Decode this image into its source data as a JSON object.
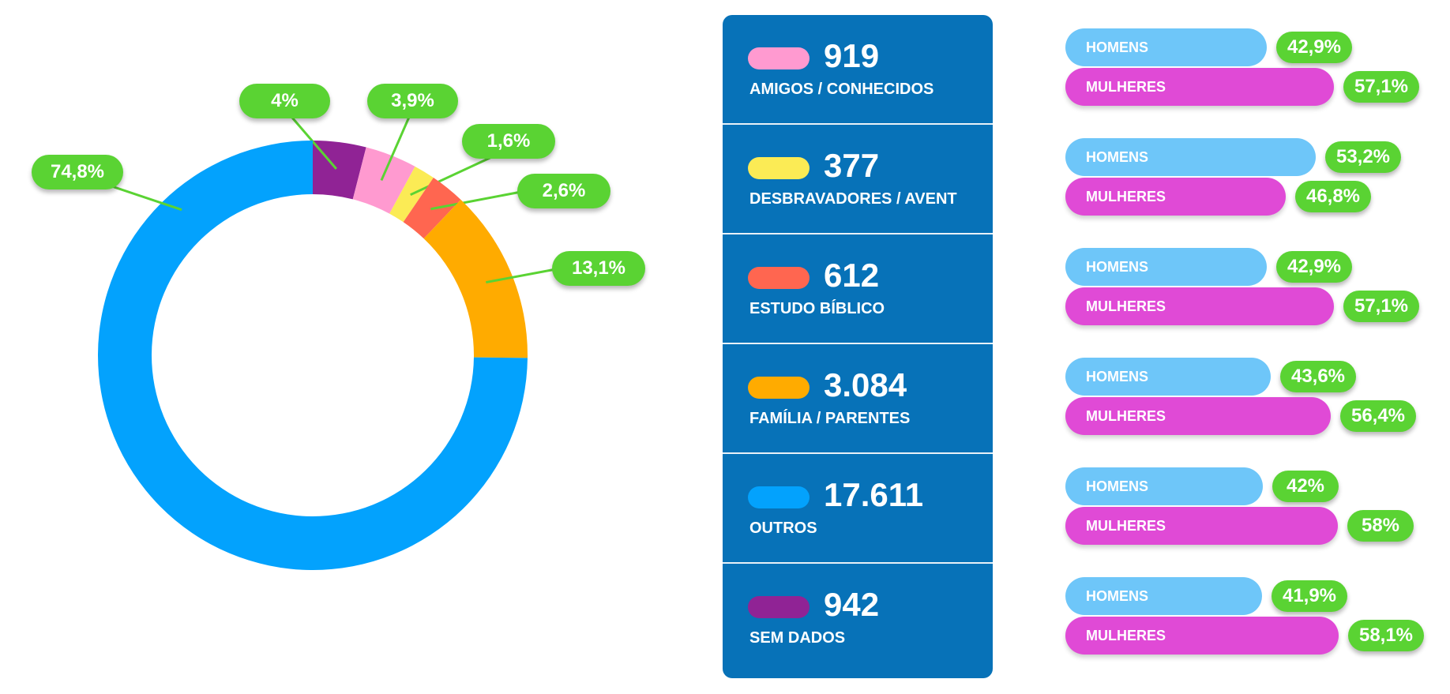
{
  "colors": {
    "label_bg": "#5ad333",
    "panel_bg": "#0772b8",
    "homens": "#6ec6f9",
    "mulheres": "#e04ad6"
  },
  "chart_data": {
    "type": "pie",
    "donut": true,
    "slices": [
      {
        "label": "AMIGOS / CONHECIDOS",
        "count": "919",
        "value": 3.9,
        "value_label": "3,9%",
        "color": "#ff9ad0"
      },
      {
        "label": "DESBRAVADORES / AVENT",
        "count": "377",
        "value": 1.6,
        "value_label": "1,6%",
        "color": "#fbeb55"
      },
      {
        "label": "ESTUDO BÍBLICO",
        "count": "612",
        "value": 2.6,
        "value_label": "2,6%",
        "color": "#ff6650"
      },
      {
        "label": "FAMÍLIA / PARENTES",
        "count": "3.084",
        "value": 13.1,
        "value_label": "13,1%",
        "color": "#ffab00"
      },
      {
        "label": "OUTROS",
        "count": "17.611",
        "value": 74.8,
        "value_label": "74,8%",
        "color": "#03a2fd"
      },
      {
        "label": "SEM DADOS",
        "count": "942",
        "value": 4.0,
        "value_label": "4%",
        "color": "#902395"
      }
    ],
    "gender_breakdown": [
      {
        "category": "AMIGOS / CONHECIDOS",
        "homens_label": "HOMENS",
        "mulheres_label": "MULHERES",
        "homens": 42.9,
        "mulheres": 57.1,
        "homens_text": "42,9%",
        "mulheres_text": "57,1%"
      },
      {
        "category": "DESBRAVADORES / AVENT",
        "homens_label": "HOMENS",
        "mulheres_label": "MULHERES",
        "homens": 53.2,
        "mulheres": 46.8,
        "homens_text": "53,2%",
        "mulheres_text": "46,8%"
      },
      {
        "category": "ESTUDO BÍBLICO",
        "homens_label": "HOMENS",
        "mulheres_label": "MULHERES",
        "homens": 42.9,
        "mulheres": 57.1,
        "homens_text": "42,9%",
        "mulheres_text": "57,1%"
      },
      {
        "category": "FAMÍLIA / PARENTES",
        "homens_label": "HOMENS",
        "mulheres_label": "MULHERES",
        "homens": 43.6,
        "mulheres": 56.4,
        "homens_text": "43,6%",
        "mulheres_text": "56,4%"
      },
      {
        "category": "OUTROS",
        "homens_label": "HOMENS",
        "mulheres_label": "MULHERES",
        "homens": 42.0,
        "mulheres": 58.0,
        "homens_text": "42%",
        "mulheres_text": "58%"
      },
      {
        "category": "SEM DADOS",
        "homens_label": "HOMENS",
        "mulheres_label": "MULHERES",
        "homens": 41.9,
        "mulheres": 58.1,
        "homens_text": "41,9%",
        "mulheres_text": "58,1%"
      }
    ]
  }
}
